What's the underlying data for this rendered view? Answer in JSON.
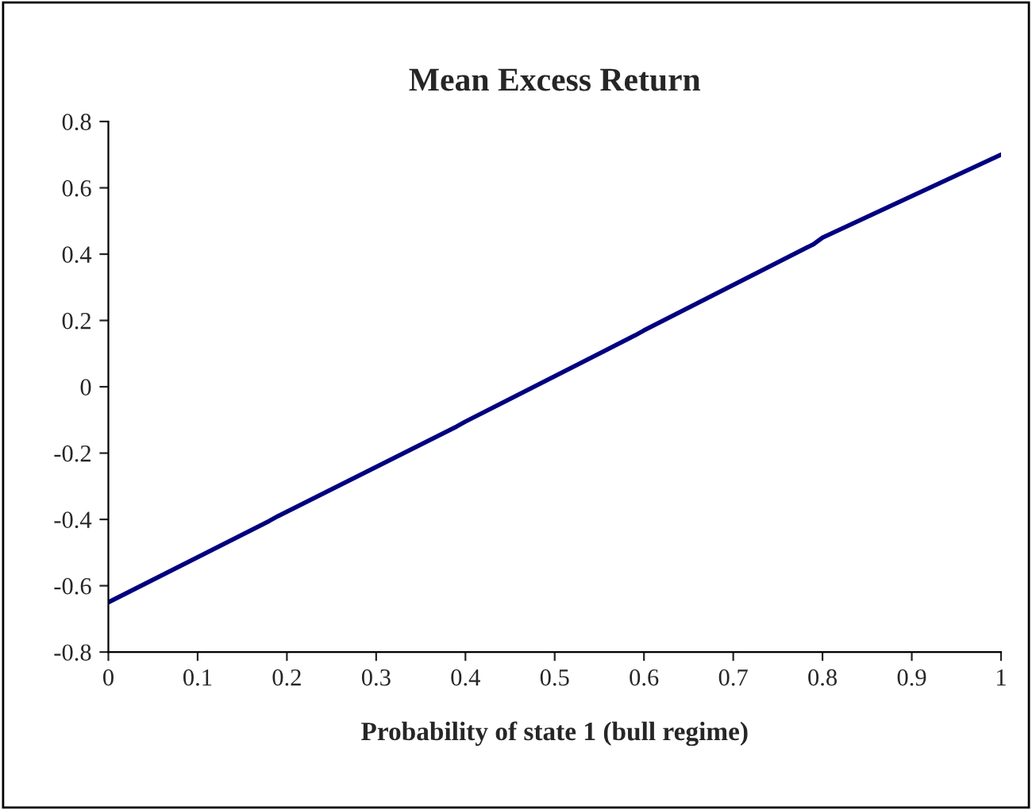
{
  "chart_data": {
    "type": "line",
    "title": "Mean Excess Return",
    "xlabel": "Probability of state 1 (bull regime)",
    "series": [
      {
        "color": "#000080",
        "x": [
          0,
          0.18,
          0.19,
          0.39,
          0.4,
          0.59,
          0.6,
          0.79,
          0.8,
          1
        ],
        "values": [
          -0.65,
          -0.405,
          -0.39,
          -0.12,
          -0.105,
          0.155,
          0.17,
          0.43,
          0.45,
          0.7
        ]
      }
    ],
    "xlim": [
      0,
      1
    ],
    "xticks": [
      0,
      0.1,
      0.2,
      0.3,
      0.4,
      0.5,
      0.6,
      0.7,
      0.8,
      0.9,
      1
    ],
    "ylim": [
      -0.8,
      0.8
    ],
    "yticks": [
      -0.8,
      -0.6,
      -0.4,
      -0.2,
      0,
      0.2,
      0.4,
      0.6,
      0.8
    ],
    "grid": false,
    "legend": false,
    "marker": "none",
    "line_style": "solid"
  }
}
